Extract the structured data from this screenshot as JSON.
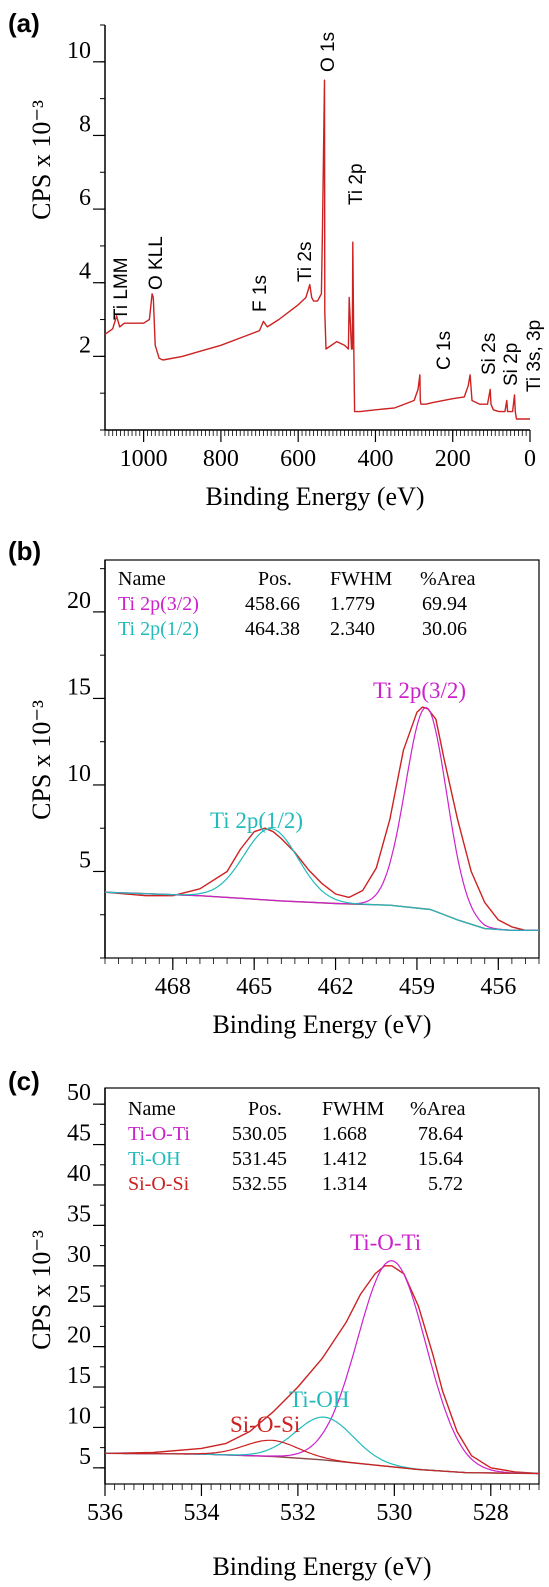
{
  "colors": {
    "red": "#cc2222",
    "brown": "#8a4a4a",
    "magenta": "#cc22cc",
    "cyan": "#22bbbb",
    "axis": "#000000"
  },
  "chart_data": [
    {
      "panel": "(a)",
      "type": "line",
      "xlabel": "Binding Energy (eV)",
      "ylabel": "CPS x 10⁻³",
      "xlim": [
        1100,
        0
      ],
      "ylim": [
        0,
        11
      ],
      "x_ticks": [
        "1000",
        "800",
        "600",
        "400",
        "200",
        "0"
      ],
      "y_ticks": [
        "2",
        "4",
        "6",
        "8",
        "10"
      ],
      "peak_labels": [
        "Ti LMM",
        "O KLL",
        "F 1s",
        "Ti 2s",
        "O 1s",
        "Ti 2p",
        "C 1s",
        "Si 2s",
        "Si 2p",
        "Ti 3s, 3p"
      ],
      "series": [
        {
          "x": [
            1100,
            1080,
            1070,
            1062,
            1050,
            1000,
            985,
            978,
            975,
            970,
            960,
            950,
            900,
            850,
            800,
            750,
            700,
            690,
            680,
            650,
            600,
            580,
            570,
            565,
            560,
            550,
            545,
            540,
            537,
            532,
            531,
            528,
            500,
            480,
            470,
            468,
            462,
            460,
            458.7,
            456,
            454,
            440,
            400,
            350,
            300,
            290,
            285,
            284,
            282,
            270,
            250,
            200,
            170,
            160,
            155,
            150,
            130,
            110,
            103,
            101,
            95,
            80,
            65,
            60,
            58,
            55,
            45,
            40,
            38,
            35,
            20,
            0
          ],
          "y": [
            2.6,
            2.75,
            3.1,
            2.8,
            2.9,
            2.9,
            3.0,
            3.7,
            3.6,
            2.3,
            1.95,
            1.9,
            2.0,
            2.15,
            2.3,
            2.5,
            2.7,
            2.95,
            2.8,
            3.0,
            3.4,
            3.6,
            3.95,
            3.6,
            3.5,
            3.5,
            3.6,
            3.7,
            5.5,
            9.5,
            3.2,
            2.2,
            2.4,
            2.3,
            2.2,
            3.6,
            2.2,
            2.2,
            5.1,
            2.2,
            0.5,
            0.5,
            0.55,
            0.6,
            0.8,
            1.1,
            1.5,
            0.8,
            0.7,
            0.7,
            0.75,
            0.85,
            0.9,
            1.2,
            1.5,
            0.8,
            0.7,
            0.7,
            1.1,
            0.7,
            0.55,
            0.5,
            0.5,
            0.8,
            0.5,
            0.5,
            0.5,
            0.95,
            0.5,
            0.3,
            0.3,
            0.3
          ]
        }
      ]
    },
    {
      "panel": "(b)",
      "type": "line",
      "xlabel": "Binding Energy (eV)",
      "ylabel": "CPS x 10⁻³",
      "xlim": [
        470.5,
        454.5
      ],
      "ylim": [
        0,
        23
      ],
      "x_ticks": [
        "468",
        "465",
        "462",
        "459",
        "456"
      ],
      "y_ticks": [
        "5",
        "10",
        "15",
        "20"
      ],
      "table": {
        "headers": [
          "Name",
          "Pos.",
          "FWHM",
          "%Area"
        ],
        "rows": [
          {
            "name": "Ti 2p(3/2)",
            "pos": "458.66",
            "fwhm": "1.779",
            "area": "69.94"
          },
          {
            "name": "Ti 2p(1/2)",
            "pos": "464.38",
            "fwhm": "2.340",
            "area": "30.06"
          }
        ]
      },
      "component_labels": [
        "Ti 2p(3/2)",
        "Ti 2p(1/2)"
      ],
      "series": [
        {
          "role": "envelope",
          "x": [
            470.5,
            469,
            468,
            467,
            466,
            465.5,
            465,
            464.6,
            464.3,
            464,
            463.5,
            463,
            462.5,
            462,
            461.5,
            461,
            460.5,
            460,
            459.5,
            459,
            458.8,
            458.6,
            458.3,
            458,
            457.5,
            457,
            456.5,
            456,
            455.5,
            455,
            454.5
          ],
          "y": [
            3.8,
            3.6,
            3.6,
            4.0,
            5.0,
            6.3,
            7.3,
            7.5,
            7.3,
            6.9,
            6.1,
            5.1,
            4.3,
            3.7,
            3.5,
            3.9,
            5.2,
            8.0,
            12.0,
            14.2,
            14.5,
            14.4,
            13.8,
            11.5,
            8.0,
            5.0,
            3.2,
            2.2,
            1.8,
            1.6,
            1.6
          ]
        },
        {
          "role": "background",
          "x": [
            470.5,
            467,
            464,
            462,
            460,
            458.5,
            457.5,
            456.5,
            455.5,
            454.5
          ],
          "y": [
            3.8,
            3.6,
            3.3,
            3.15,
            3.05,
            2.8,
            2.2,
            1.7,
            1.6,
            1.6
          ]
        }
      ]
    },
    {
      "panel": "(c)",
      "type": "line",
      "xlabel": "Binding Energy (eV)",
      "ylabel": "CPS x 10⁻³",
      "xlim": [
        536,
        527
      ],
      "ylim": [
        3,
        52
      ],
      "x_ticks": [
        "536",
        "534",
        "532",
        "530",
        "528"
      ],
      "y_ticks": [
        "5",
        "10",
        "15",
        "20",
        "25",
        "30",
        "35",
        "40",
        "45",
        "50"
      ],
      "table": {
        "headers": [
          "Name",
          "Pos.",
          "FWHM",
          "%Area"
        ],
        "rows": [
          {
            "name": "Ti-O-Ti",
            "pos": "530.05",
            "fwhm": "1.668",
            "area": "78.64"
          },
          {
            "name": "Ti-OH",
            "pos": "531.45",
            "fwhm": "1.412",
            "area": "15.64"
          },
          {
            "name": "Si-O-Si",
            "pos": "532.55",
            "fwhm": "1.314",
            "area": "5.72"
          }
        ]
      },
      "component_labels": [
        "Ti-O-Ti",
        "Ti-OH",
        "Si-O-Si"
      ],
      "series": [
        {
          "role": "envelope",
          "x": [
            536,
            535,
            534,
            533.5,
            533,
            532.5,
            532,
            531.5,
            531,
            530.7,
            530.4,
            530.2,
            530.05,
            529.8,
            529.5,
            529.2,
            529,
            528.7,
            528.4,
            528,
            527.5,
            527
          ],
          "y": [
            6.8,
            6.9,
            7.4,
            8.0,
            9.5,
            12.0,
            15.0,
            18.5,
            23.0,
            26.5,
            29.0,
            30.0,
            30.0,
            29.0,
            25.0,
            19.0,
            14.5,
            9.5,
            6.5,
            5.0,
            4.5,
            4.3
          ]
        },
        {
          "role": "background",
          "x": [
            536,
            534,
            532.5,
            531.5,
            530.5,
            529.5,
            528.5,
            527
          ],
          "y": [
            6.8,
            6.7,
            6.4,
            6.0,
            5.4,
            4.8,
            4.4,
            4.3
          ]
        }
      ]
    }
  ]
}
